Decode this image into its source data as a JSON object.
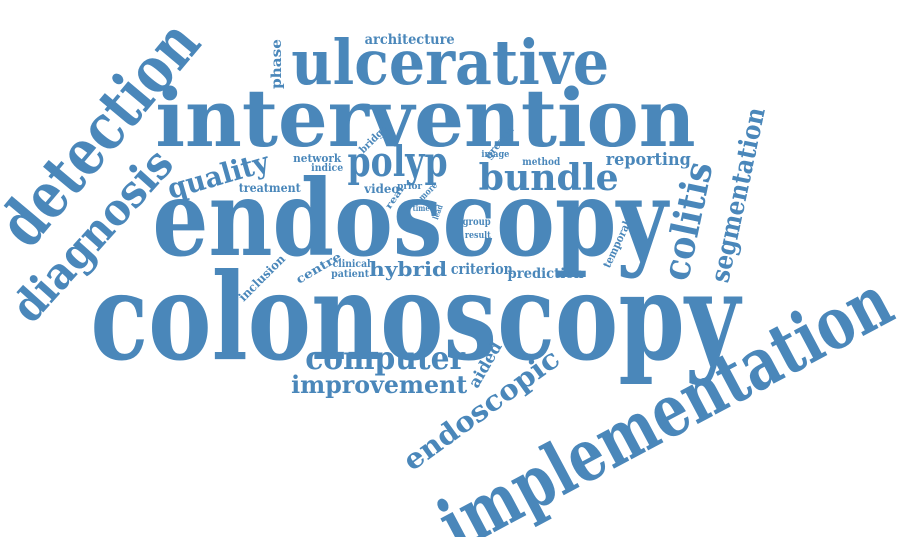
{
  "word_color": "#4a87ba",
  "background_color": "#ffffff",
  "words": [
    {
      "id": "colonoscopy",
      "text": "colonoscopy"
    },
    {
      "id": "endoscopy",
      "text": "endoscopy"
    },
    {
      "id": "intervention",
      "text": "intervention"
    },
    {
      "id": "ulcerative",
      "text": "ulcerative"
    },
    {
      "id": "implementation",
      "text": "implementation"
    },
    {
      "id": "detection",
      "text": "detection"
    },
    {
      "id": "diagnosis",
      "text": "diagnosis"
    },
    {
      "id": "polyp",
      "text": "polyp"
    },
    {
      "id": "bundle",
      "text": "bundle"
    },
    {
      "id": "quality",
      "text": "quality"
    },
    {
      "id": "colitis",
      "text": "colitis"
    },
    {
      "id": "segmentation",
      "text": "segmentation"
    },
    {
      "id": "computer",
      "text": "computer"
    },
    {
      "id": "improvement",
      "text": "improvement"
    },
    {
      "id": "endoscopic",
      "text": "endoscopic"
    },
    {
      "id": "aided",
      "text": "aided"
    },
    {
      "id": "hybrid",
      "text": "hybrid"
    },
    {
      "id": "criterion",
      "text": "criterion"
    },
    {
      "id": "prediction",
      "text": "prediction"
    },
    {
      "id": "reporting",
      "text": "reporting"
    },
    {
      "id": "architecture",
      "text": "architecture"
    },
    {
      "id": "phase",
      "text": "phase"
    },
    {
      "id": "treatment",
      "text": "treatment"
    },
    {
      "id": "network",
      "text": "network"
    },
    {
      "id": "indice",
      "text": "indice"
    },
    {
      "id": "bridge",
      "text": "bridge"
    },
    {
      "id": "image",
      "text": "image"
    },
    {
      "id": "greater",
      "text": "greater"
    },
    {
      "id": "method",
      "text": "method"
    },
    {
      "id": "video",
      "text": "video"
    },
    {
      "id": "real",
      "text": "real"
    },
    {
      "id": "prior",
      "text": "prior"
    },
    {
      "id": "more",
      "text": "more"
    },
    {
      "id": "time",
      "text": "time"
    },
    {
      "id": "lead",
      "text": "lead"
    },
    {
      "id": "group",
      "text": "group"
    },
    {
      "id": "result",
      "text": "result"
    },
    {
      "id": "temporal",
      "text": "temporal"
    },
    {
      "id": "inclusion",
      "text": "inclusion"
    },
    {
      "id": "centre",
      "text": "centre"
    },
    {
      "id": "clinical",
      "text": "clinical"
    },
    {
      "id": "patient",
      "text": "patient"
    }
  ]
}
